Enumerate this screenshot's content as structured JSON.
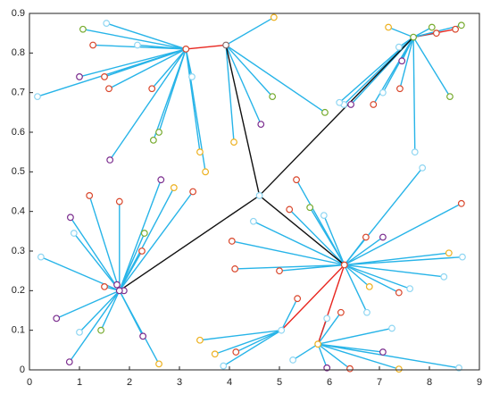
{
  "chart_data": {
    "type": "network",
    "xlim": [
      0,
      9
    ],
    "xticks": [
      0,
      1,
      2,
      3,
      4,
      5,
      6,
      7,
      8,
      9
    ],
    "ylim": [
      0,
      0.9
    ],
    "yticks": [
      0,
      0.1,
      0.2,
      0.3,
      0.4,
      0.5,
      0.6,
      0.7,
      0.8,
      0.9
    ],
    "edge_color": "#27b4e8",
    "clusters": [
      {
        "head": {
          "x": 3.13,
          "y": 0.81,
          "color": "#d9462b"
        },
        "members": [
          {
            "x": 0.16,
            "y": 0.69,
            "color": "#8fd6f2"
          },
          {
            "x": 1.0,
            "y": 0.74,
            "color": "#7b2d8e"
          },
          {
            "x": 1.5,
            "y": 0.74,
            "color": "#d9462b"
          },
          {
            "x": 1.59,
            "y": 0.71,
            "color": "#d9462b"
          },
          {
            "x": 1.27,
            "y": 0.82,
            "color": "#d9462b"
          },
          {
            "x": 1.07,
            "y": 0.86,
            "color": "#77ab2f"
          },
          {
            "x": 1.54,
            "y": 0.875,
            "color": "#8fd6f2"
          },
          {
            "x": 2.16,
            "y": 0.82,
            "color": "#8fd6f2"
          },
          {
            "x": 1.61,
            "y": 0.53,
            "color": "#7b2d8e"
          },
          {
            "x": 2.48,
            "y": 0.58,
            "color": "#77ab2f"
          },
          {
            "x": 2.59,
            "y": 0.6,
            "color": "#77ab2f"
          },
          {
            "x": 2.45,
            "y": 0.71,
            "color": "#d9462b"
          },
          {
            "x": 3.25,
            "y": 0.74,
            "color": "#8fd6f2"
          },
          {
            "x": 3.41,
            "y": 0.55,
            "color": "#edb120"
          },
          {
            "x": 3.52,
            "y": 0.5,
            "color": "#edb120"
          }
        ]
      },
      {
        "head": {
          "x": 3.93,
          "y": 0.82,
          "color": "#8a6a6a"
        },
        "members": [
          {
            "x": 4.89,
            "y": 0.89,
            "color": "#edb120"
          },
          {
            "x": 4.09,
            "y": 0.575,
            "color": "#edb120"
          },
          {
            "x": 4.63,
            "y": 0.62,
            "color": "#7b2d8e"
          },
          {
            "x": 4.86,
            "y": 0.69,
            "color": "#77ab2f"
          },
          {
            "x": 5.91,
            "y": 0.65,
            "color": "#77ab2f"
          }
        ]
      },
      {
        "head": {
          "x": 7.68,
          "y": 0.84,
          "color": "#77ab2f"
        },
        "members": [
          {
            "x": 7.18,
            "y": 0.865,
            "color": "#edb120"
          },
          {
            "x": 7.39,
            "y": 0.815,
            "color": "#8fd6f2"
          },
          {
            "x": 7.45,
            "y": 0.78,
            "color": "#7b2d8e"
          },
          {
            "x": 7.41,
            "y": 0.71,
            "color": "#d9462b"
          },
          {
            "x": 7.07,
            "y": 0.7,
            "color": "#8fd6f2"
          },
          {
            "x": 6.88,
            "y": 0.67,
            "color": "#d9462b"
          },
          {
            "x": 6.43,
            "y": 0.67,
            "color": "#7b2d8e"
          },
          {
            "x": 6.29,
            "y": 0.67,
            "color": "#8fd6f2"
          },
          {
            "x": 6.2,
            "y": 0.675,
            "color": "#8fd6f2"
          },
          {
            "x": 7.71,
            "y": 0.55,
            "color": "#8fd6f2"
          },
          {
            "x": 8.41,
            "y": 0.69,
            "color": "#77ab2f"
          },
          {
            "x": 8.14,
            "y": 0.85,
            "color": "#d9462b"
          },
          {
            "x": 8.05,
            "y": 0.865,
            "color": "#77ab2f"
          },
          {
            "x": 8.52,
            "y": 0.86,
            "color": "#d9462b",
            "link_color": "#e8261f"
          },
          {
            "x": 8.64,
            "y": 0.87,
            "color": "#77ab2f"
          }
        ]
      },
      {
        "head": {
          "x": 4.6,
          "y": 0.44,
          "color": "#8fd6f2"
        },
        "members": []
      },
      {
        "head": {
          "x": 6.3,
          "y": 0.265,
          "color": "#d9462b"
        },
        "members": [
          {
            "x": 5.34,
            "y": 0.48,
            "color": "#d9462b"
          },
          {
            "x": 5.2,
            "y": 0.405,
            "color": "#d9462b"
          },
          {
            "x": 5.61,
            "y": 0.41,
            "color": "#77ab2f"
          },
          {
            "x": 5.89,
            "y": 0.39,
            "color": "#8fd6f2"
          },
          {
            "x": 7.86,
            "y": 0.51,
            "color": "#8fd6f2"
          },
          {
            "x": 8.64,
            "y": 0.42,
            "color": "#d9462b"
          },
          {
            "x": 8.39,
            "y": 0.295,
            "color": "#edb120"
          },
          {
            "x": 8.66,
            "y": 0.285,
            "color": "#8fd6f2"
          },
          {
            "x": 8.29,
            "y": 0.235,
            "color": "#8fd6f2"
          },
          {
            "x": 7.61,
            "y": 0.205,
            "color": "#8fd6f2"
          },
          {
            "x": 7.39,
            "y": 0.195,
            "color": "#d9462b"
          },
          {
            "x": 6.8,
            "y": 0.21,
            "color": "#edb120"
          },
          {
            "x": 6.75,
            "y": 0.145,
            "color": "#8fd6f2"
          },
          {
            "x": 6.73,
            "y": 0.335,
            "color": "#d9462b"
          },
          {
            "x": 7.07,
            "y": 0.335,
            "color": "#7b2d8e"
          },
          {
            "x": 5.0,
            "y": 0.25,
            "color": "#d9462b"
          },
          {
            "x": 4.05,
            "y": 0.325,
            "color": "#d9462b"
          },
          {
            "x": 4.11,
            "y": 0.255,
            "color": "#d9462b"
          },
          {
            "x": 4.48,
            "y": 0.375,
            "color": "#8fd6f2"
          }
        ]
      },
      {
        "head": {
          "x": 1.8,
          "y": 0.2,
          "color": "#7b2d8e"
        },
        "members": [
          {
            "x": 0.23,
            "y": 0.285,
            "color": "#8fd6f2"
          },
          {
            "x": 0.82,
            "y": 0.385,
            "color": "#7b2d8e"
          },
          {
            "x": 0.89,
            "y": 0.345,
            "color": "#8fd6f2"
          },
          {
            "x": 1.2,
            "y": 0.44,
            "color": "#d9462b"
          },
          {
            "x": 1.5,
            "y": 0.21,
            "color": "#d9462b"
          },
          {
            "x": 1.75,
            "y": 0.215,
            "color": "#7b2d8e"
          },
          {
            "x": 1.89,
            "y": 0.2,
            "color": "#7b2d8e"
          },
          {
            "x": 1.8,
            "y": 0.425,
            "color": "#d9462b"
          },
          {
            "x": 2.3,
            "y": 0.345,
            "color": "#77ab2f"
          },
          {
            "x": 2.25,
            "y": 0.3,
            "color": "#d9462b"
          },
          {
            "x": 2.63,
            "y": 0.48,
            "color": "#7b2d8e"
          },
          {
            "x": 2.89,
            "y": 0.46,
            "color": "#edb120"
          },
          {
            "x": 3.27,
            "y": 0.45,
            "color": "#d9462b"
          },
          {
            "x": 0.54,
            "y": 0.13,
            "color": "#7b2d8e"
          },
          {
            "x": 1.0,
            "y": 0.095,
            "color": "#8fd6f2"
          },
          {
            "x": 1.43,
            "y": 0.1,
            "color": "#77ab2f"
          },
          {
            "x": 2.27,
            "y": 0.085,
            "color": "#7b2d8e"
          },
          {
            "x": 2.59,
            "y": 0.015,
            "color": "#edb120"
          },
          {
            "x": 0.8,
            "y": 0.02,
            "color": "#7b2d8e"
          }
        ]
      },
      {
        "head": {
          "x": 5.04,
          "y": 0.1,
          "color": "#8fd6f2"
        },
        "members": [
          {
            "x": 3.41,
            "y": 0.075,
            "color": "#edb120"
          },
          {
            "x": 3.71,
            "y": 0.04,
            "color": "#edb120"
          },
          {
            "x": 4.13,
            "y": 0.045,
            "color": "#d9462b"
          },
          {
            "x": 3.88,
            "y": 0.01,
            "color": "#8fd6f2"
          },
          {
            "x": 5.36,
            "y": 0.18,
            "color": "#d9462b"
          }
        ]
      },
      {
        "head": {
          "x": 5.77,
          "y": 0.065,
          "color": "#edb120"
        },
        "members": [
          {
            "x": 5.95,
            "y": 0.13,
            "color": "#8fd6f2"
          },
          {
            "x": 6.23,
            "y": 0.145,
            "color": "#d9462b"
          },
          {
            "x": 5.27,
            "y": 0.025,
            "color": "#8fd6f2"
          },
          {
            "x": 5.95,
            "y": 0.005,
            "color": "#7b2d8e"
          },
          {
            "x": 6.41,
            "y": 0.003,
            "color": "#d9462b"
          },
          {
            "x": 7.25,
            "y": 0.105,
            "color": "#8fd6f2"
          },
          {
            "x": 7.07,
            "y": 0.045,
            "color": "#7b2d8e"
          },
          {
            "x": 7.39,
            "y": 0.002,
            "color": "#edb120"
          },
          {
            "x": 8.59,
            "y": 0.005,
            "color": "#8fd6f2"
          }
        ]
      }
    ],
    "backbone": [
      {
        "from": 0,
        "to": 1,
        "color": "#e8261f"
      },
      {
        "from": 1,
        "to": 3,
        "color": "#111111"
      },
      {
        "from": 3,
        "to": 5,
        "color": "#111111"
      },
      {
        "from": 3,
        "to": 2,
        "color": "#111111"
      },
      {
        "from": 3,
        "to": 4,
        "color": "#111111"
      },
      {
        "from": 4,
        "to": 6,
        "color": "#e8261f"
      },
      {
        "from": 4,
        "to": 7,
        "color": "#e8261f"
      }
    ]
  }
}
